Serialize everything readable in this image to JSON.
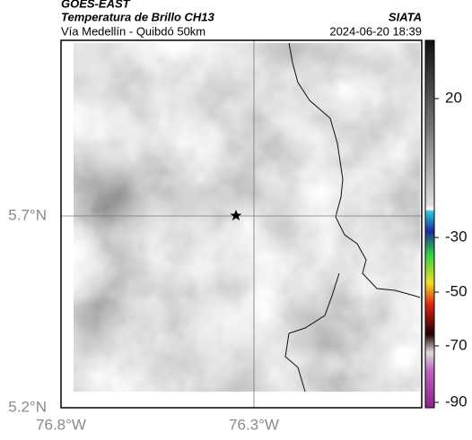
{
  "header": {
    "title": "GOES-EAST",
    "subtitle": "Temperatura de Brillo CH13",
    "region": "Vía Medellín - Quibdó 50km",
    "source": "SIATA",
    "timestamp": "2024-06-20 18:39"
  },
  "axes": {
    "latitude_labels": [
      "5.7°N",
      "5.2°N"
    ],
    "longitude_labels": [
      "76.8°W",
      "76.3°W"
    ]
  },
  "colorbar": {
    "ticks": [
      20,
      -30,
      -50,
      -70,
      -90
    ]
  }
}
